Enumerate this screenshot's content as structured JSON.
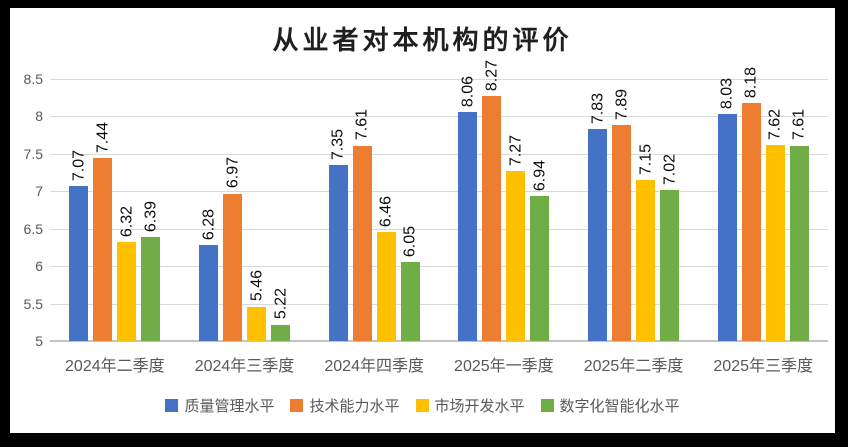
{
  "window": {
    "frame_color": "#000000",
    "chart_background": "#ffffff"
  },
  "chart_data": {
    "type": "bar",
    "title": "从业者对本机构的评价",
    "categories": [
      "2024年二季度",
      "2024年三季度",
      "2024年四季度",
      "2025年一季度",
      "2025年二季度",
      "2025年三季度"
    ],
    "series": [
      {
        "name": "质量管理水平",
        "color": "#4472C4",
        "values": [
          7.07,
          6.28,
          7.35,
          8.06,
          7.83,
          8.03
        ]
      },
      {
        "name": "技术能力水平",
        "color": "#ED7D31",
        "values": [
          7.44,
          6.97,
          7.61,
          8.27,
          7.89,
          8.18
        ]
      },
      {
        "name": "市场开发水平",
        "color": "#FFC000",
        "values": [
          6.32,
          5.46,
          6.46,
          7.27,
          7.15,
          7.62
        ]
      },
      {
        "name": "数字化智能化水平",
        "color": "#70AD47",
        "values": [
          6.39,
          5.22,
          6.05,
          6.94,
          7.02,
          7.61
        ]
      }
    ],
    "data_labels": true,
    "data_label_decimals": 2,
    "y_axis": {
      "min": 5,
      "max": 8.5,
      "step": 0.5,
      "ticks": [
        "8.5",
        "8",
        "7.5",
        "7",
        "6.5",
        "6",
        "5.5",
        "5"
      ]
    },
    "grid": true,
    "gridline_color": "#d9d9d9",
    "axis_line_color": "#c3c3c3",
    "legend_position": "bottom"
  }
}
